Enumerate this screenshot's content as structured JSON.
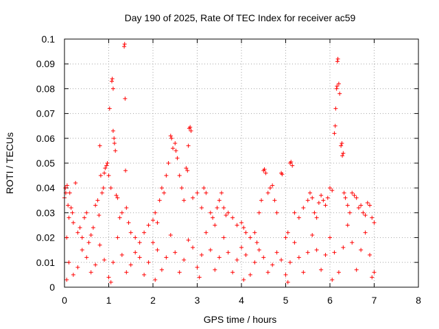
{
  "chart_data": {
    "type": "scatter",
    "title": "Day 190 of 2025, Rate Of TEC Index for receiver ac59",
    "xlabel": "GPS time / hours",
    "ylabel": "ROTI / TECUs",
    "xlim": [
      0,
      8
    ],
    "ylim": [
      0,
      0.1
    ],
    "x_ticks": [
      "0",
      "1",
      "2",
      "3",
      "4",
      "5",
      "6",
      "7",
      "8"
    ],
    "y_ticks": [
      "0",
      "0.01",
      "0.02",
      "0.03",
      "0.04",
      "0.05",
      "0.06",
      "0.07",
      "0.08",
      "0.09",
      "0.1"
    ],
    "grid": true,
    "marker": "+",
    "color": "#ff0000",
    "series": [
      {
        "points": [
          [
            0.0,
            0.036
          ],
          [
            0.02,
            0.04
          ],
          [
            0.03,
            0.038
          ],
          [
            0.05,
            0.02
          ],
          [
            0.06,
            0.041
          ],
          [
            0.08,
            0.033
          ],
          [
            0.1,
            0.028
          ],
          [
            0.12,
            0.038
          ],
          [
            0.15,
            0.032
          ],
          [
            0.18,
            0.03
          ],
          [
            0.2,
            0.026
          ],
          [
            0.25,
            0.042
          ],
          [
            0.3,
            0.022
          ],
          [
            0.35,
            0.024
          ],
          [
            0.4,
            0.02
          ],
          [
            0.45,
            0.028
          ],
          [
            0.5,
            0.03
          ],
          [
            0.55,
            0.018
          ],
          [
            0.6,
            0.021
          ],
          [
            0.65,
            0.024
          ],
          [
            0.7,
            0.033
          ],
          [
            0.75,
            0.035
          ],
          [
            0.78,
            0.029
          ],
          [
            0.8,
            0.057
          ],
          [
            0.82,
            0.045
          ],
          [
            0.85,
            0.038
          ],
          [
            0.88,
            0.04
          ],
          [
            0.9,
            0.046
          ],
          [
            0.92,
            0.048
          ],
          [
            0.95,
            0.049
          ],
          [
            0.97,
            0.05
          ],
          [
            1.0,
            0.045
          ],
          [
            1.02,
            0.072
          ],
          [
            1.05,
            0.04
          ],
          [
            1.07,
            0.083
          ],
          [
            1.08,
            0.084
          ],
          [
            1.1,
            0.08
          ],
          [
            1.1,
            0.063
          ],
          [
            1.12,
            0.06
          ],
          [
            1.13,
            0.058
          ],
          [
            1.15,
            0.055
          ],
          [
            1.17,
            0.037
          ],
          [
            1.2,
            0.036
          ],
          [
            1.25,
            0.028
          ],
          [
            1.3,
            0.03
          ],
          [
            1.35,
            0.097
          ],
          [
            1.36,
            0.098
          ],
          [
            1.37,
            0.076
          ],
          [
            1.38,
            0.047
          ],
          [
            1.4,
            0.032
          ],
          [
            1.45,
            0.026
          ],
          [
            1.5,
            0.022
          ],
          [
            1.6,
            0.02
          ],
          [
            1.7,
            0.018
          ],
          [
            1.8,
            0.022
          ],
          [
            1.9,
            0.025
          ],
          [
            2.0,
            0.027
          ],
          [
            2.05,
            0.03
          ],
          [
            2.1,
            0.026
          ],
          [
            2.15,
            0.035
          ],
          [
            2.2,
            0.04
          ],
          [
            2.25,
            0.038
          ],
          [
            2.3,
            0.045
          ],
          [
            2.35,
            0.05
          ],
          [
            2.4,
            0.061
          ],
          [
            2.42,
            0.06
          ],
          [
            2.45,
            0.056
          ],
          [
            2.5,
            0.058
          ],
          [
            2.52,
            0.055
          ],
          [
            2.55,
            0.052
          ],
          [
            2.6,
            0.045
          ],
          [
            2.65,
            0.04
          ],
          [
            2.7,
            0.035
          ],
          [
            2.75,
            0.048
          ],
          [
            2.78,
            0.047
          ],
          [
            2.8,
            0.057
          ],
          [
            2.82,
            0.064
          ],
          [
            2.84,
            0.0645
          ],
          [
            2.86,
            0.063
          ],
          [
            2.9,
            0.036
          ],
          [
            3.0,
            0.038
          ],
          [
            3.1,
            0.032
          ],
          [
            3.15,
            0.04
          ],
          [
            3.2,
            0.038
          ],
          [
            3.3,
            0.03
          ],
          [
            3.35,
            0.028
          ],
          [
            3.4,
            0.025
          ],
          [
            3.45,
            0.032
          ],
          [
            3.5,
            0.035
          ],
          [
            3.55,
            0.038
          ],
          [
            3.6,
            0.032
          ],
          [
            3.65,
            0.029
          ],
          [
            3.7,
            0.03
          ],
          [
            3.8,
            0.028
          ],
          [
            3.9,
            0.025
          ],
          [
            4.0,
            0.026
          ],
          [
            4.05,
            0.024
          ],
          [
            4.1,
            0.022
          ],
          [
            4.2,
            0.02
          ],
          [
            4.3,
            0.022
          ],
          [
            4.35,
            0.018
          ],
          [
            4.4,
            0.03
          ],
          [
            4.45,
            0.035
          ],
          [
            4.5,
            0.047
          ],
          [
            4.52,
            0.0475
          ],
          [
            4.55,
            0.046
          ],
          [
            4.6,
            0.038
          ],
          [
            4.65,
            0.04
          ],
          [
            4.7,
            0.041
          ],
          [
            4.75,
            0.035
          ],
          [
            4.8,
            0.03
          ],
          [
            4.9,
            0.046
          ],
          [
            4.92,
            0.0455
          ],
          [
            5.0,
            0.02
          ],
          [
            5.05,
            0.022
          ],
          [
            5.1,
            0.05
          ],
          [
            5.12,
            0.0505
          ],
          [
            5.15,
            0.049
          ],
          [
            5.2,
            0.03
          ],
          [
            5.3,
            0.028
          ],
          [
            5.4,
            0.032
          ],
          [
            5.5,
            0.035
          ],
          [
            5.55,
            0.038
          ],
          [
            5.6,
            0.036
          ],
          [
            5.65,
            0.03
          ],
          [
            5.7,
            0.028
          ],
          [
            5.75,
            0.034
          ],
          [
            5.8,
            0.037
          ],
          [
            5.85,
            0.035
          ],
          [
            5.9,
            0.033
          ],
          [
            5.95,
            0.036
          ],
          [
            6.0,
            0.04
          ],
          [
            6.05,
            0.039
          ],
          [
            6.1,
            0.062
          ],
          [
            6.12,
            0.065
          ],
          [
            6.13,
            0.072
          ],
          [
            6.15,
            0.08
          ],
          [
            6.16,
            0.081
          ],
          [
            6.17,
            0.091
          ],
          [
            6.18,
            0.092
          ],
          [
            6.2,
            0.082
          ],
          [
            6.22,
            0.078
          ],
          [
            6.25,
            0.057
          ],
          [
            6.27,
            0.058
          ],
          [
            6.28,
            0.053
          ],
          [
            6.3,
            0.054
          ],
          [
            6.32,
            0.038
          ],
          [
            6.35,
            0.036
          ],
          [
            6.4,
            0.033
          ],
          [
            6.45,
            0.03
          ],
          [
            6.5,
            0.038
          ],
          [
            6.55,
            0.037
          ],
          [
            6.6,
            0.036
          ],
          [
            6.65,
            0.032
          ],
          [
            6.7,
            0.033
          ],
          [
            6.75,
            0.03
          ],
          [
            6.8,
            0.029
          ],
          [
            6.85,
            0.034
          ],
          [
            6.9,
            0.033
          ],
          [
            6.95,
            0.028
          ],
          [
            7.0,
            0.026
          ],
          [
            0.1,
            0.01
          ],
          [
            0.3,
            0.008
          ],
          [
            0.5,
            0.012
          ],
          [
            0.7,
            0.009
          ],
          [
            0.9,
            0.011
          ],
          [
            1.1,
            0.01
          ],
          [
            1.3,
            0.013
          ],
          [
            1.5,
            0.009
          ],
          [
            1.7,
            0.012
          ],
          [
            1.9,
            0.01
          ],
          [
            2.1,
            0.015
          ],
          [
            2.3,
            0.012
          ],
          [
            2.5,
            0.014
          ],
          [
            2.7,
            0.011
          ],
          [
            2.9,
            0.016
          ],
          [
            3.1,
            0.013
          ],
          [
            3.3,
            0.015
          ],
          [
            3.5,
            0.012
          ],
          [
            3.7,
            0.014
          ],
          [
            3.9,
            0.011
          ],
          [
            4.1,
            0.013
          ],
          [
            4.3,
            0.01
          ],
          [
            4.5,
            0.012
          ],
          [
            4.7,
            0.009
          ],
          [
            4.9,
            0.011
          ],
          [
            5.1,
            0.01
          ],
          [
            5.3,
            0.012
          ],
          [
            5.5,
            0.014
          ],
          [
            5.7,
            0.015
          ],
          [
            5.9,
            0.013
          ],
          [
            6.1,
            0.014
          ],
          [
            6.3,
            0.016
          ],
          [
            6.5,
            0.018
          ],
          [
            6.7,
            0.015
          ],
          [
            6.9,
            0.013
          ],
          [
            0.2,
            0.005
          ],
          [
            0.6,
            0.006
          ],
          [
            1.0,
            0.004
          ],
          [
            1.4,
            0.006
          ],
          [
            1.8,
            0.005
          ],
          [
            2.2,
            0.007
          ],
          [
            2.6,
            0.006
          ],
          [
            3.0,
            0.008
          ],
          [
            3.4,
            0.007
          ],
          [
            3.8,
            0.006
          ],
          [
            4.2,
            0.005
          ],
          [
            4.6,
            0.006
          ],
          [
            5.0,
            0.005
          ],
          [
            5.4,
            0.006
          ],
          [
            5.8,
            0.007
          ],
          [
            6.2,
            0.006
          ],
          [
            6.6,
            0.007
          ],
          [
            7.0,
            0.006
          ],
          [
            0.4,
            0.015
          ],
          [
            0.8,
            0.017
          ],
          [
            1.2,
            0.02
          ],
          [
            1.6,
            0.014
          ],
          [
            2.0,
            0.018
          ],
          [
            2.4,
            0.021
          ],
          [
            2.8,
            0.019
          ],
          [
            3.2,
            0.022
          ],
          [
            3.6,
            0.02
          ],
          [
            4.0,
            0.016
          ],
          [
            4.4,
            0.015
          ],
          [
            4.8,
            0.014
          ],
          [
            5.2,
            0.018
          ],
          [
            5.6,
            0.021
          ],
          [
            6.0,
            0.02
          ],
          [
            6.4,
            0.025
          ],
          [
            6.8,
            0.022
          ],
          [
            0.05,
            0.003
          ],
          [
            1.05,
            0.002
          ],
          [
            2.05,
            0.003
          ],
          [
            3.05,
            0.004
          ],
          [
            4.05,
            0.003
          ],
          [
            5.05,
            0.002
          ],
          [
            6.05,
            0.003
          ],
          [
            6.95,
            0.004
          ]
        ]
      }
    ]
  }
}
